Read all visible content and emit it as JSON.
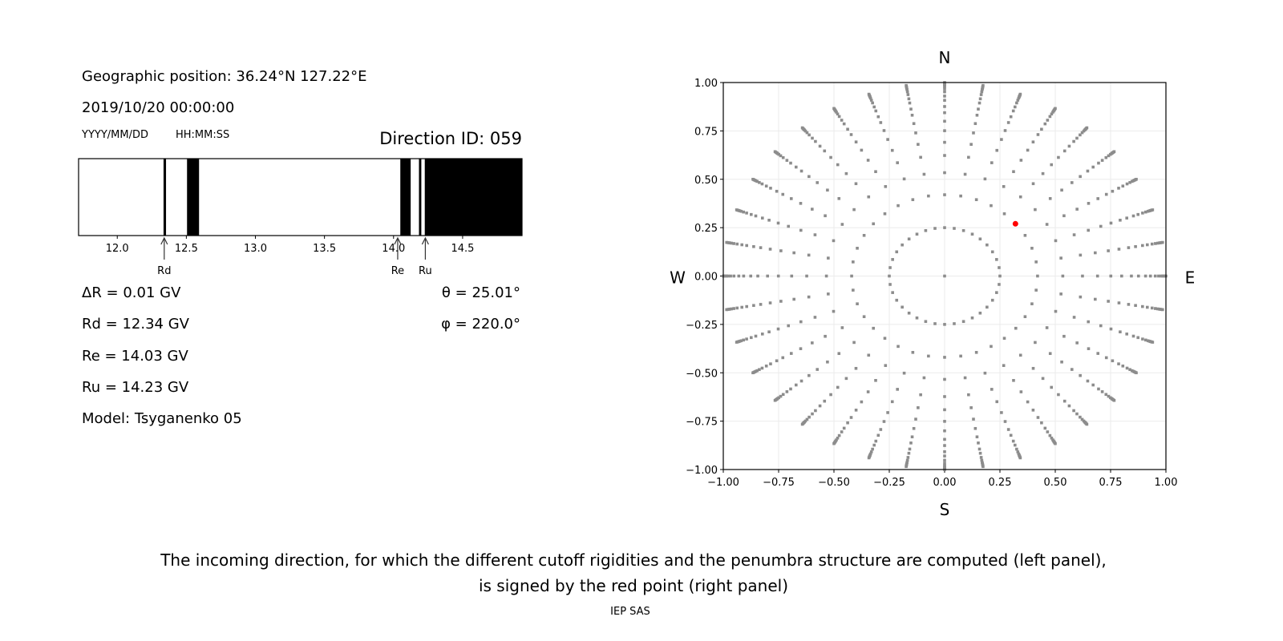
{
  "left_panel": {
    "position": "Geographic position: 36.24°N 127.22°E",
    "datetime": "2019/10/20 00:00:00",
    "date_format": "YYYY/MM/DD",
    "time_format": "HH:MM:SS",
    "direction_id": "Direction ID: 059",
    "delta_r": "ΔR = 0.01 GV",
    "rd": "Rd = 12.34 GV",
    "re": "Re = 14.03 GV",
    "ru": "Ru = 14.23 GV",
    "model": "Model: Tsyganenko 05",
    "theta": "θ = 25.01°",
    "phi": "φ = 220.0°"
  },
  "caption": {
    "line1": "The incoming direction, for which the different cutoff rigidities and the penumbra structure are computed (left panel),",
    "line2": "is signed by the red point (right panel)",
    "credit": "IEP SAS"
  },
  "chart_data": [
    {
      "type": "bar",
      "description_kind": "penumbra strip",
      "xlim": [
        11.72,
        14.93
      ],
      "xticks": [
        12.0,
        12.5,
        13.0,
        13.5,
        14.0,
        14.5
      ],
      "xtick_labels": [
        "12.0",
        "12.5",
        "13.0",
        "13.5",
        "14.0",
        "14.5"
      ],
      "forbidden_bands": [
        [
          12.335,
          12.353
        ],
        [
          12.505,
          12.592
        ],
        [
          14.049,
          14.124
        ],
        [
          14.184,
          14.201
        ],
        [
          14.226,
          14.93
        ]
      ],
      "colors": {
        "forbidden": "#000000",
        "allowed": "#ffffff"
      },
      "markers": [
        {
          "label": "Rd",
          "value": 12.34
        },
        {
          "label": "Re",
          "value": 14.03
        },
        {
          "label": "Ru",
          "value": 14.23
        }
      ]
    },
    {
      "type": "scatter",
      "xlim": [
        -1.0,
        1.0
      ],
      "ylim": [
        -1.0,
        1.0
      ],
      "grid": true,
      "xticks": [
        "−1.00",
        "−0.75",
        "−0.50",
        "−0.25",
        "0.00",
        "0.25",
        "0.50",
        "0.75",
        "1.00"
      ],
      "yticks": [
        "1.00",
        "0.75",
        "0.50",
        "0.25",
        "0.00",
        "−0.25",
        "−0.50",
        "−0.75",
        "−1.00"
      ],
      "compass": {
        "north": "N",
        "south": "S",
        "west": "W",
        "east": "E"
      },
      "grid_points": {
        "ray_angles_deg_step": 10,
        "ray_radii": [
          0.42,
          0.534,
          0.623,
          0.691,
          0.751,
          0.8,
          0.844,
          0.876,
          0.908,
          0.93,
          0.952,
          0.967,
          0.978,
          0.985,
          0.99,
          0.995,
          1.0
        ],
        "inner_circle_radius": 0.25,
        "inner_circle_step_deg": 10,
        "center": [
          0,
          0
        ],
        "color": "#8c8c8c"
      },
      "selected_point": {
        "x": 0.32,
        "y": 0.27,
        "color": "#ff0000"
      }
    }
  ]
}
